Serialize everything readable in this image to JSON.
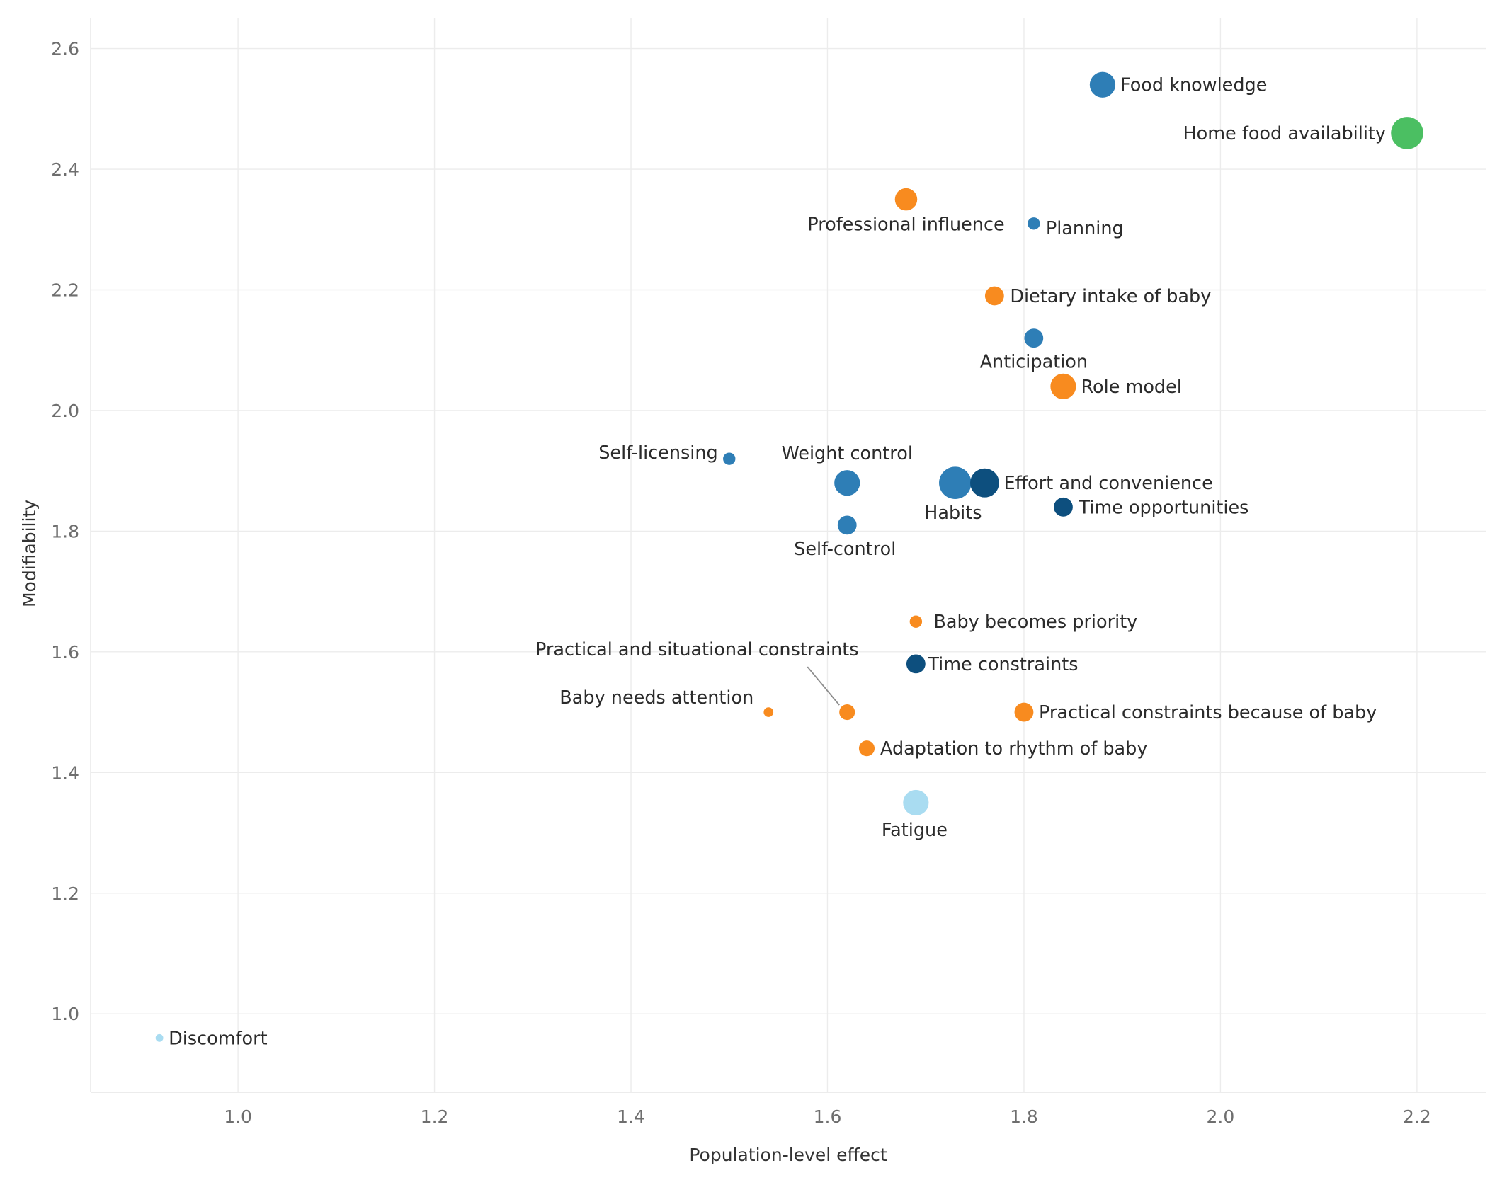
{
  "chart_data": {
    "type": "scatter",
    "title": "",
    "xlabel": "Population-level effect",
    "ylabel": "Modifiability",
    "xlim": [
      0.85,
      2.27
    ],
    "ylim": [
      0.87,
      2.65
    ],
    "grid": true,
    "legend": "none",
    "x_ticks": [
      "1.0",
      "1.2",
      "1.4",
      "1.6",
      "1.8",
      "2.0",
      "2.2"
    ],
    "y_ticks": [
      "1.0",
      "1.2",
      "1.4",
      "1.6",
      "1.8",
      "2.0",
      "2.2",
      "2.4",
      "2.6"
    ],
    "colors": {
      "blue": "#2e7eb6",
      "dark_blue": "#0d4f7e",
      "orange": "#f88b1f",
      "green": "#4bbf62",
      "light_blue": "#a9dcf1"
    },
    "points": [
      {
        "label": "Food knowledge",
        "x": 1.88,
        "y": 2.54,
        "size": 3,
        "color": "blue"
      },
      {
        "label": "Home food availability",
        "x": 2.19,
        "y": 2.46,
        "size": 4,
        "color": "green"
      },
      {
        "label": "Professional influence",
        "x": 1.68,
        "y": 2.35,
        "size": 2.5,
        "color": "orange"
      },
      {
        "label": "Planning",
        "x": 1.81,
        "y": 2.31,
        "size": 1,
        "color": "blue"
      },
      {
        "label": "Dietary intake of baby",
        "x": 1.77,
        "y": 2.19,
        "size": 2,
        "color": "orange"
      },
      {
        "label": "Anticipation",
        "x": 1.81,
        "y": 2.12,
        "size": 2,
        "color": "blue"
      },
      {
        "label": "Role model",
        "x": 1.84,
        "y": 2.04,
        "size": 3,
        "color": "orange"
      },
      {
        "label": "Self-licensing",
        "x": 1.5,
        "y": 1.92,
        "size": 1,
        "color": "blue"
      },
      {
        "label": "Weight control",
        "x": 1.62,
        "y": 1.88,
        "size": 3,
        "color": "blue"
      },
      {
        "label": "Habits",
        "x": 1.73,
        "y": 1.88,
        "size": 4,
        "color": "blue"
      },
      {
        "label": "Effort and convenience",
        "x": 1.76,
        "y": 1.88,
        "size": 3.5,
        "color": "dark_blue"
      },
      {
        "label": "Time opportunities",
        "x": 1.84,
        "y": 1.84,
        "size": 2,
        "color": "dark_blue"
      },
      {
        "label": "Self-control",
        "x": 1.62,
        "y": 1.81,
        "size": 2,
        "color": "blue"
      },
      {
        "label": "Baby becomes priority",
        "x": 1.69,
        "y": 1.65,
        "size": 1,
        "color": "orange"
      },
      {
        "label": "Time constraints",
        "x": 1.69,
        "y": 1.58,
        "size": 2,
        "color": "dark_blue"
      },
      {
        "label": "Practical and situational constraints",
        "x": 1.62,
        "y": 1.5,
        "size": 1.5,
        "color": "orange"
      },
      {
        "label": "Baby needs attention",
        "x": 1.54,
        "y": 1.5,
        "size": 0.6,
        "color": "orange"
      },
      {
        "label": "Practical constraints because of baby",
        "x": 1.8,
        "y": 1.5,
        "size": 2,
        "color": "orange"
      },
      {
        "label": "Adaptation to rhythm of baby",
        "x": 1.64,
        "y": 1.44,
        "size": 1.5,
        "color": "orange"
      },
      {
        "label": "Fatigue",
        "x": 1.69,
        "y": 1.35,
        "size": 3,
        "color": "light_blue"
      },
      {
        "label": "Discomfort",
        "x": 0.92,
        "y": 0.96,
        "size": 0.3,
        "color": "light_blue"
      }
    ]
  }
}
